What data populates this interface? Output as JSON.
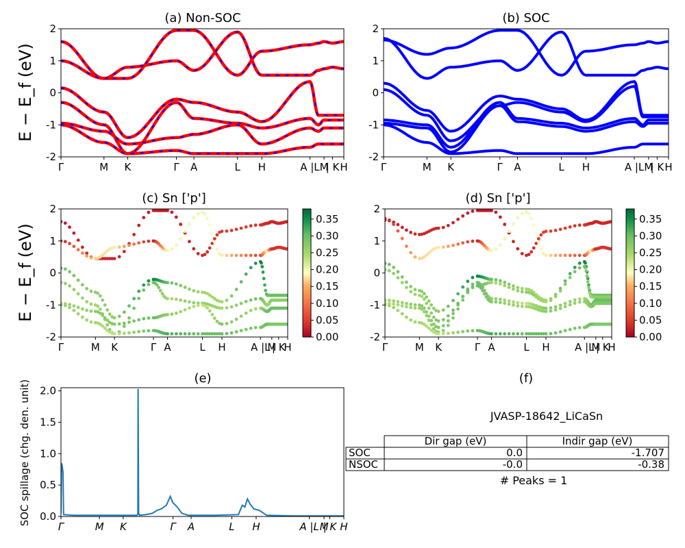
{
  "figure": {
    "ylabel": "E − E_f (eV)"
  },
  "kpath": [
    "Γ",
    "M",
    "K",
    "Γ",
    "A",
    "L",
    "H",
    "A",
    "L",
    "M",
    "K",
    "H"
  ],
  "kpath_tick_labels": [
    "Γ",
    "M",
    "K",
    "Γ",
    "A",
    "L",
    "H",
    "A |L",
    "M",
    "| K",
    "H"
  ],
  "yticks": [
    "-2",
    "-1",
    "0",
    "1",
    "2"
  ],
  "colorbar": {
    "ticks": [
      "0.00",
      "0.05",
      "0.10",
      "0.15",
      "0.20",
      "0.25",
      "0.30",
      "0.35"
    ],
    "range": [
      0,
      0.38
    ]
  },
  "colors": {
    "nonsoc_red": "#ff0000",
    "nonsoc_blue_dash": "#0000ff",
    "soc_blue": "#0000ff",
    "spillage_line": "#1f77b4",
    "cmap_low": "#a50026",
    "cmap_mid": "#ffffbf",
    "cmap_high": "#006837"
  },
  "panels": {
    "a": {
      "title": "(a) Non-SOC"
    },
    "b": {
      "title": "(b) SOC"
    },
    "c": {
      "title": "(c)  Sn ['p']"
    },
    "d": {
      "title": "(d) Sn ['p']"
    },
    "e": {
      "title": "(e)",
      "ylabel": "SOC spillage (chg. den. unit)",
      "yticks": [
        "0.0",
        "0.5",
        "1.0",
        "1.5",
        "2.0"
      ]
    },
    "f": {
      "title": "(f)",
      "material": "JVASP-18642_LiCaSn",
      "table": {
        "columns": [
          "Dir gap (eV)",
          "Indir gap (eV)"
        ],
        "rows": [
          {
            "label": "SOC",
            "dir": "0.0",
            "indir": "-1.707"
          },
          {
            "label": "NSOC",
            "dir": "-0.0",
            "indir": "-0.38"
          }
        ]
      },
      "peaks": "# Peaks = 1"
    }
  },
  "chart_data": [
    {
      "panel": "a",
      "type": "line",
      "title": "(a) Non-SOC",
      "ylabel": "E − E_f (eV)",
      "ylim": [
        -2,
        2
      ],
      "x_ticks": [
        "Γ",
        "M",
        "K",
        "Γ",
        "A",
        "L",
        "H",
        "A |L",
        "M",
        "| K",
        "H"
      ],
      "series_style": "red solid with blue dashed overlay",
      "bands_eV_at_kpoints": [
        [
          1.6,
          0.45,
          0.45,
          1.95,
          1.95,
          0.55,
          1.3,
          1.5,
          1.55,
          1.6,
          1.55,
          1.6
        ],
        [
          1.0,
          0.45,
          0.8,
          1.0,
          0.7,
          1.9,
          0.55,
          0.55,
          0.7,
          0.75,
          0.8,
          0.75
        ],
        [
          0.15,
          -0.6,
          -1.4,
          -0.2,
          -0.3,
          -0.6,
          -0.9,
          0.35,
          -0.7,
          -0.7,
          -0.7,
          -0.7
        ],
        [
          -0.3,
          -1.0,
          -1.9,
          -0.3,
          -0.8,
          -0.95,
          -1.1,
          -0.8,
          -1.0,
          -0.85,
          -0.85,
          -0.85
        ],
        [
          -0.95,
          -1.2,
          -1.6,
          -1.4,
          -1.3,
          -1.0,
          -1.6,
          -1.1,
          -1.2,
          -1.1,
          -1.1,
          -1.1
        ],
        [
          -1.0,
          -1.55,
          -1.9,
          -1.8,
          -1.9,
          -1.9,
          -1.9,
          -1.7,
          -1.6,
          -1.6,
          -1.6,
          -1.6
        ]
      ]
    },
    {
      "panel": "b",
      "type": "line",
      "title": "(b) SOC",
      "ylabel": "",
      "ylim": [
        -2,
        2
      ],
      "x_ticks": [
        "Γ",
        "M",
        "K",
        "Γ",
        "A",
        "L",
        "H",
        "A |L",
        "M",
        "| K",
        "H"
      ],
      "series_style": "blue solid",
      "bands_eV_at_kpoints": [
        [
          1.65,
          1.2,
          1.4,
          1.95,
          1.95,
          0.55,
          1.3,
          1.5,
          1.55,
          1.6,
          1.55,
          1.6
        ],
        [
          1.7,
          0.45,
          0.8,
          1.0,
          0.7,
          1.9,
          0.55,
          0.55,
          0.7,
          0.75,
          0.8,
          0.75
        ],
        [
          0.3,
          -0.55,
          -1.2,
          -0.1,
          -0.2,
          -0.5,
          -0.85,
          0.35,
          -0.7,
          -0.7,
          -0.7,
          -0.7
        ],
        [
          0.1,
          -0.7,
          -1.5,
          -0.4,
          -0.3,
          -0.6,
          -0.9,
          0.2,
          -0.75,
          -0.75,
          -0.75,
          -0.75
        ],
        [
          -0.85,
          -1.0,
          -1.7,
          -0.3,
          -0.8,
          -0.95,
          -1.1,
          -0.8,
          -1.0,
          -0.85,
          -0.85,
          -0.85
        ],
        [
          -0.95,
          -1.1,
          -1.85,
          -0.4,
          -0.9,
          -1.05,
          -1.2,
          -0.9,
          -1.05,
          -0.95,
          -0.95,
          -0.95
        ],
        [
          -1.0,
          -1.55,
          -1.9,
          -1.8,
          -1.9,
          -1.9,
          -1.9,
          -1.7,
          -1.6,
          -1.6,
          -1.6,
          -1.6
        ]
      ]
    },
    {
      "panel": "c",
      "type": "scatter",
      "title": "(c)  Sn ['p']",
      "ylabel": "E − E_f (eV)",
      "ylim": [
        -2,
        2
      ],
      "x_ticks": [
        "Γ",
        "M",
        "K",
        "Γ",
        "A",
        "L",
        "H",
        "A |L",
        "M",
        "| K",
        "H"
      ],
      "color_quantity": "Sn p weight",
      "color_range": [
        0,
        0.38
      ],
      "bands_eV_at_kpoints": [
        [
          1.6,
          0.45,
          0.45,
          1.95,
          1.95,
          0.55,
          1.3,
          1.5,
          1.55,
          1.6,
          1.55,
          1.6
        ],
        [
          1.0,
          0.45,
          0.8,
          1.0,
          0.7,
          1.9,
          0.55,
          0.55,
          0.7,
          0.75,
          0.8,
          0.75
        ],
        [
          0.15,
          -0.6,
          -1.4,
          -0.2,
          -0.3,
          -0.6,
          -0.9,
          0.35,
          -0.7,
          -0.7,
          -0.7,
          -0.7
        ],
        [
          -0.3,
          -1.0,
          -1.9,
          -0.3,
          -0.8,
          -0.95,
          -1.1,
          -0.8,
          -1.0,
          -0.85,
          -0.85,
          -0.85
        ],
        [
          -0.95,
          -1.2,
          -1.6,
          -1.4,
          -1.3,
          -1.0,
          -1.6,
          -1.1,
          -1.2,
          -1.1,
          -1.1,
          -1.1
        ],
        [
          -1.0,
          -1.55,
          -1.9,
          -1.8,
          -1.9,
          -1.9,
          -1.9,
          -1.7,
          -1.6,
          -1.6,
          -1.6,
          -1.6
        ]
      ],
      "band_weights_at_kpoints": [
        [
          0.02,
          0.03,
          0.03,
          0.02,
          0.02,
          0.03,
          0.05,
          0.04,
          0.03,
          0.03,
          0.03,
          0.03
        ],
        [
          0.02,
          0.17,
          0.18,
          0.02,
          0.2,
          0.2,
          0.18,
          0.05,
          0.2,
          0.04,
          0.04,
          0.04
        ],
        [
          0.3,
          0.27,
          0.27,
          0.36,
          0.3,
          0.25,
          0.25,
          0.36,
          0.3,
          0.3,
          0.3,
          0.3
        ],
        [
          0.27,
          0.25,
          0.28,
          0.3,
          0.25,
          0.27,
          0.25,
          0.3,
          0.25,
          0.27,
          0.27,
          0.27
        ],
        [
          0.25,
          0.27,
          0.28,
          0.3,
          0.27,
          0.23,
          0.28,
          0.25,
          0.3,
          0.3,
          0.3,
          0.3
        ],
        [
          0.26,
          0.25,
          0.23,
          0.3,
          0.32,
          0.3,
          0.3,
          0.28,
          0.3,
          0.28,
          0.28,
          0.28
        ]
      ]
    },
    {
      "panel": "d",
      "type": "scatter",
      "title": "(d) Sn ['p']",
      "ylabel": "",
      "ylim": [
        -2,
        2
      ],
      "x_ticks": [
        "Γ",
        "M",
        "K",
        "Γ",
        "A",
        "L",
        "H",
        "A |L",
        "M",
        "| K",
        "H"
      ],
      "color_quantity": "Sn p weight",
      "color_range": [
        0,
        0.38
      ],
      "bands_eV_at_kpoints": [
        [
          1.65,
          1.2,
          1.4,
          1.95,
          1.95,
          0.55,
          1.3,
          1.5,
          1.55,
          1.6,
          1.55,
          1.6
        ],
        [
          1.7,
          0.45,
          0.8,
          1.0,
          0.7,
          1.9,
          0.55,
          0.55,
          0.7,
          0.75,
          0.8,
          0.75
        ],
        [
          0.3,
          -0.55,
          -1.2,
          -0.1,
          -0.2,
          -0.5,
          -0.85,
          0.35,
          -0.7,
          -0.7,
          -0.7,
          -0.7
        ],
        [
          0.1,
          -0.7,
          -1.5,
          -0.4,
          -0.3,
          -0.6,
          -0.9,
          0.2,
          -0.75,
          -0.75,
          -0.75,
          -0.75
        ],
        [
          -0.85,
          -1.0,
          -1.7,
          -0.3,
          -0.8,
          -0.95,
          -1.1,
          -0.8,
          -1.0,
          -0.85,
          -0.85,
          -0.85
        ],
        [
          -0.95,
          -1.1,
          -1.85,
          -0.4,
          -0.9,
          -1.05,
          -1.2,
          -0.9,
          -1.05,
          -0.95,
          -0.95,
          -0.95
        ],
        [
          -1.0,
          -1.55,
          -1.9,
          -1.8,
          -1.9,
          -1.9,
          -1.9,
          -1.7,
          -1.6,
          -1.6,
          -1.6,
          -1.6
        ]
      ],
      "band_weights_at_kpoints": [
        [
          0.02,
          0.03,
          0.03,
          0.02,
          0.02,
          0.03,
          0.05,
          0.04,
          0.03,
          0.03,
          0.03,
          0.03
        ],
        [
          0.02,
          0.17,
          0.18,
          0.02,
          0.2,
          0.2,
          0.18,
          0.05,
          0.2,
          0.04,
          0.04,
          0.04
        ],
        [
          0.3,
          0.27,
          0.27,
          0.36,
          0.3,
          0.25,
          0.25,
          0.36,
          0.3,
          0.3,
          0.3,
          0.3
        ],
        [
          0.27,
          0.25,
          0.28,
          0.32,
          0.25,
          0.27,
          0.25,
          0.3,
          0.25,
          0.27,
          0.27,
          0.27
        ],
        [
          0.25,
          0.27,
          0.28,
          0.3,
          0.27,
          0.23,
          0.28,
          0.25,
          0.3,
          0.3,
          0.3,
          0.3
        ],
        [
          0.24,
          0.26,
          0.27,
          0.3,
          0.28,
          0.25,
          0.27,
          0.26,
          0.28,
          0.28,
          0.28,
          0.28
        ],
        [
          0.26,
          0.25,
          0.23,
          0.3,
          0.32,
          0.3,
          0.3,
          0.28,
          0.3,
          0.28,
          0.28,
          0.28
        ]
      ]
    },
    {
      "panel": "e",
      "type": "line",
      "title": "(e)",
      "xlabel": "",
      "ylabel": "SOC spillage (chg. den. unit)",
      "ylim": [
        0,
        2.05
      ],
      "x_ticks": [
        "Γ",
        "M",
        "K",
        "Γ",
        "A",
        "L",
        "H",
        "A",
        "L",
        "M",
        "K",
        "H"
      ],
      "series": [
        {
          "x_path": [
            0,
            0.02,
            0.05,
            0.08,
            0.1,
            0.5,
            1,
            2,
            2.95,
            2.99,
            3,
            3.02,
            3.06,
            3.3,
            3.55,
            3.75,
            3.9,
            4.1,
            4.25,
            4.35,
            4.5,
            4.7,
            4.95,
            6,
            6.9,
            7.05,
            7.15,
            7.25,
            7.35,
            7.5,
            7.7,
            8,
            9,
            11
          ],
          "values": [
            0.05,
            0.85,
            0.8,
            0.7,
            0.03,
            0.02,
            0.02,
            0.02,
            0.02,
            0.03,
            2.03,
            0.05,
            0.02,
            0.03,
            0.05,
            0.1,
            0.12,
            0.18,
            0.32,
            0.22,
            0.16,
            0.05,
            0.02,
            0.02,
            0.03,
            0.18,
            0.15,
            0.28,
            0.2,
            0.12,
            0.1,
            0.02,
            0.01,
            0.01
          ]
        }
      ]
    }
  ]
}
